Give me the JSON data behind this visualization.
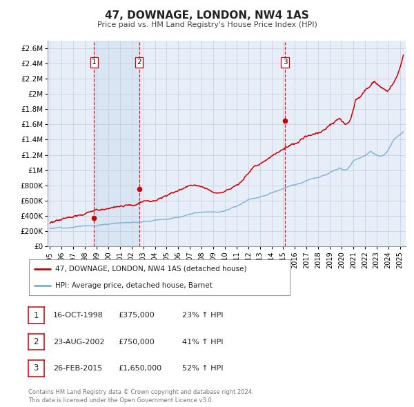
{
  "title": "47, DOWNAGE, LONDON, NW4 1AS",
  "subtitle": "Price paid vs. HM Land Registry's House Price Index (HPI)",
  "legend_line1": "47, DOWNAGE, LONDON, NW4 1AS (detached house)",
  "legend_line2": "HPI: Average price, detached house, Barnet",
  "sale_color": "#cc0000",
  "hpi_color": "#7ab0d4",
  "background_color": "#e8eef8",
  "plot_bg": "#ffffff",
  "grid_color": "#c0cce0",
  "vline_color": "#cc0000",
  "vline_shade_color": "#d4e2f0",
  "transactions": [
    {
      "label": "1",
      "date_x": 1998.79,
      "price": 375000,
      "date_str": "16-OCT-1998",
      "pct": "23%",
      "direction": "↑"
    },
    {
      "label": "2",
      "date_x": 2002.64,
      "price": 750000,
      "date_str": "23-AUG-2002",
      "pct": "41%",
      "direction": "↑"
    },
    {
      "label": "3",
      "date_x": 2015.15,
      "price": 1650000,
      "date_str": "26-FEB-2015",
      "pct": "52%",
      "direction": "↑"
    }
  ],
  "ylim": [
    0,
    2700000
  ],
  "xlim_start": 1994.8,
  "xlim_end": 2025.5,
  "yticks": [
    0,
    200000,
    400000,
    600000,
    800000,
    1000000,
    1200000,
    1400000,
    1600000,
    1800000,
    2000000,
    2200000,
    2400000,
    2600000
  ],
  "ytick_labels": [
    "£0",
    "£200K",
    "£400K",
    "£600K",
    "£800K",
    "£1M",
    "£1.2M",
    "£1.4M",
    "£1.6M",
    "£1.8M",
    "£2M",
    "£2.2M",
    "£2.4M",
    "£2.6M"
  ],
  "xticks": [
    1995,
    1996,
    1997,
    1998,
    1999,
    2000,
    2001,
    2002,
    2003,
    2004,
    2005,
    2006,
    2007,
    2008,
    2009,
    2010,
    2011,
    2012,
    2013,
    2014,
    2015,
    2016,
    2017,
    2018,
    2019,
    2020,
    2021,
    2022,
    2023,
    2024,
    2025
  ],
  "footer": "Contains HM Land Registry data © Crown copyright and database right 2024.\nThis data is licensed under the Open Government Licence v3.0.",
  "table_rows": [
    {
      "label": "1",
      "date_str": "16-OCT-1998",
      "price_str": "£375,000",
      "pct_str": "23% ↑ HPI"
    },
    {
      "label": "2",
      "date_str": "23-AUG-2002",
      "price_str": "£750,000",
      "pct_str": "41% ↑ HPI"
    },
    {
      "label": "3",
      "date_str": "26-FEB-2015",
      "price_str": "£1,650,000",
      "pct_str": "52% ↑ HPI"
    }
  ]
}
